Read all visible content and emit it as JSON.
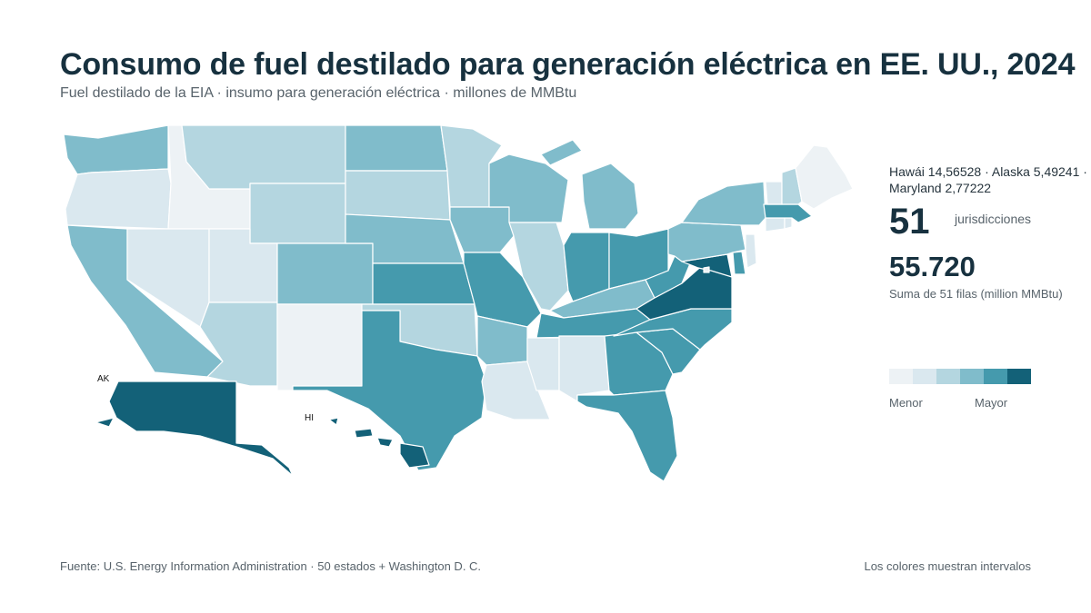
{
  "title": "Consumo de fuel destilado para generación eléctrica en EE. UU., 2024",
  "subtitle": "Fuel destilado de la EIA · insumo para generación eléctrica · millones de MMBtu",
  "highlights": "Hawái 14,56528 · Alaska 5,49241 · Maryland 2,77222",
  "count": {
    "value": "51",
    "label": "jurisdicciones"
  },
  "total": {
    "value": "55.720",
    "label": "Suma de 51 filas (million MMBtu)"
  },
  "legend": {
    "low": "Menor",
    "high": "Mayor",
    "colors": [
      "#edf2f5",
      "#dae8ef",
      "#b4d6e0",
      "#80bccb",
      "#459aad",
      "#136178"
    ]
  },
  "map_labels": {
    "alaska": "AK",
    "hawaii": "HI"
  },
  "source": "Fuente: U.S. Energy Information Administration · 50 estados + Washington D. C.",
  "note": "Los colores muestran intervalos",
  "states": [
    {
      "id": "WA",
      "bin": 3
    },
    {
      "id": "OR",
      "bin": 1
    },
    {
      "id": "CA",
      "bin": 3
    },
    {
      "id": "ID",
      "bin": 0
    },
    {
      "id": "NV",
      "bin": 1
    },
    {
      "id": "MT",
      "bin": 2
    },
    {
      "id": "WY",
      "bin": 2
    },
    {
      "id": "UT",
      "bin": 1
    },
    {
      "id": "AZ",
      "bin": 2
    },
    {
      "id": "CO",
      "bin": 3
    },
    {
      "id": "NM",
      "bin": 0
    },
    {
      "id": "ND",
      "bin": 3
    },
    {
      "id": "SD",
      "bin": 2
    },
    {
      "id": "NE",
      "bin": 3
    },
    {
      "id": "KS",
      "bin": 4
    },
    {
      "id": "OK",
      "bin": 2
    },
    {
      "id": "TX",
      "bin": 4
    },
    {
      "id": "MN",
      "bin": 2
    },
    {
      "id": "IA",
      "bin": 3
    },
    {
      "id": "MO",
      "bin": 4
    },
    {
      "id": "AR",
      "bin": 3
    },
    {
      "id": "LA",
      "bin": 1
    },
    {
      "id": "WI",
      "bin": 3
    },
    {
      "id": "IL",
      "bin": 2
    },
    {
      "id": "MI",
      "bin": 3
    },
    {
      "id": "IN",
      "bin": 4
    },
    {
      "id": "OH",
      "bin": 4
    },
    {
      "id": "KY",
      "bin": 3
    },
    {
      "id": "TN",
      "bin": 4
    },
    {
      "id": "MS",
      "bin": 1
    },
    {
      "id": "AL",
      "bin": 1
    },
    {
      "id": "GA",
      "bin": 4
    },
    {
      "id": "FL",
      "bin": 4
    },
    {
      "id": "SC",
      "bin": 4
    },
    {
      "id": "NC",
      "bin": 4
    },
    {
      "id": "VA",
      "bin": 5
    },
    {
      "id": "WV",
      "bin": 4
    },
    {
      "id": "MD",
      "bin": 5
    },
    {
      "id": "DE",
      "bin": 4
    },
    {
      "id": "DC",
      "bin": 0
    },
    {
      "id": "PA",
      "bin": 3
    },
    {
      "id": "NJ",
      "bin": 1
    },
    {
      "id": "NY",
      "bin": 3
    },
    {
      "id": "CT",
      "bin": 1
    },
    {
      "id": "RI",
      "bin": 1
    },
    {
      "id": "MA",
      "bin": 4
    },
    {
      "id": "VT",
      "bin": 1
    },
    {
      "id": "NH",
      "bin": 2
    },
    {
      "id": "ME",
      "bin": 0
    },
    {
      "id": "AK",
      "bin": 5
    },
    {
      "id": "HI",
      "bin": 5
    }
  ]
}
